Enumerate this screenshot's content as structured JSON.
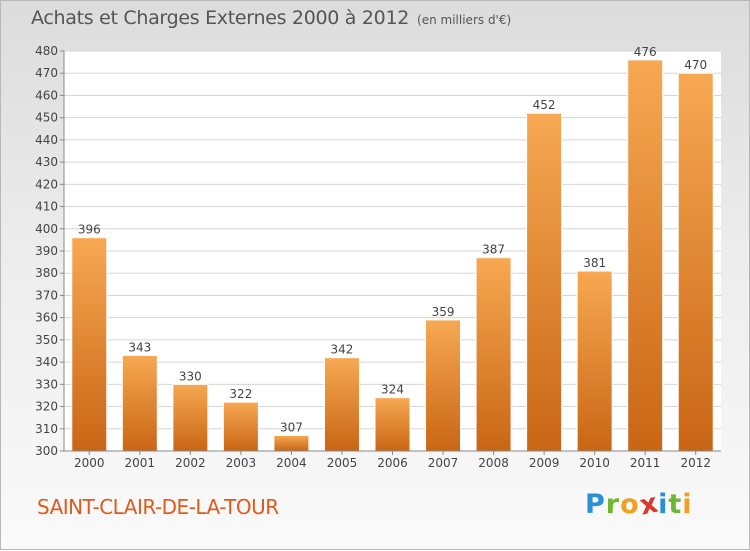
{
  "header": {
    "title": "Achats et Charges Externes 2000 à 2012",
    "unit": "(en milliers d'€)"
  },
  "footer": {
    "commune": "SAINT-CLAIR-DE-LA-TOUR",
    "logo_letters": [
      "P",
      "r",
      "o",
      "x",
      "i",
      "t",
      "i"
    ],
    "logo_colors": [
      "#2b8fd6",
      "#6cb832",
      "#f0a020",
      "#d8382c",
      "#2b8fd6",
      "#6cb832",
      "#f0a020"
    ]
  },
  "colors": {
    "bar_light": "#f7a852",
    "bar_dark": "#c96616",
    "grid": "#d6d6d6",
    "axis": "#888888",
    "text": "#444444",
    "commune": "#e05a1c"
  },
  "chart_data": {
    "type": "bar",
    "title": "Achats et Charges Externes 2000 à 2012",
    "unit_label": "(en milliers d'€)",
    "xlabel": "",
    "ylabel": "",
    "categories": [
      "2000",
      "2001",
      "2002",
      "2003",
      "2004",
      "2005",
      "2006",
      "2007",
      "2008",
      "2009",
      "2010",
      "2011",
      "2012"
    ],
    "values": [
      396,
      343,
      330,
      322,
      307,
      342,
      324,
      359,
      387,
      452,
      381,
      476,
      470
    ],
    "ylim": [
      300,
      480
    ],
    "yticks": [
      300,
      310,
      320,
      330,
      340,
      350,
      360,
      370,
      380,
      390,
      400,
      410,
      420,
      430,
      440,
      450,
      460,
      470,
      480
    ],
    "grid": true,
    "legend": "none"
  }
}
